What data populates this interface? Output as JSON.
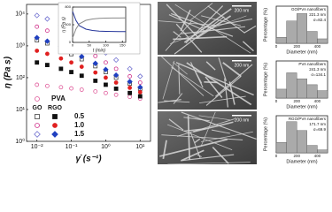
{
  "chart_data": [
    {
      "type": "scatter",
      "xlabel": "γ̇ (s⁻¹)",
      "ylabel": "η (Pa s)",
      "log_x": true,
      "log_y": true,
      "xlim": [
        0.005,
        20
      ],
      "ylim": [
        1,
        20000
      ],
      "xticks": [
        {
          "value": 0.01,
          "label": "10⁻²"
        },
        {
          "value": 0.1,
          "label": "10⁻¹"
        },
        {
          "value": 1,
          "label": "10⁰"
        },
        {
          "value": 10,
          "label": "10¹"
        }
      ],
      "yticks": [
        {
          "value": 1,
          "label": "10⁰"
        },
        {
          "value": 10,
          "label": "10¹"
        },
        {
          "value": 100,
          "label": "10²"
        },
        {
          "value": 1000,
          "label": "10³"
        },
        {
          "value": 10000,
          "label": "10⁴"
        }
      ],
      "x": [
        0.01,
        0.02,
        0.05,
        0.1,
        0.2,
        0.5,
        1,
        2,
        5,
        10
      ],
      "series": [
        {
          "name": "PVA",
          "color": "#e05a9a",
          "marker": "circle",
          "filled": false,
          "values": [
            60,
            55,
            50,
            46,
            42,
            37,
            33,
            29,
            25,
            22
          ]
        }
      ],
      "groups": [
        {
          "name": "GO",
          "filled": false,
          "series": [
            {
              "color": "#444444",
              "marker": "square",
              "values": [
                1500,
                1200,
                800,
                550,
                380,
                230,
                150,
                100,
                65,
                45
              ]
            },
            {
              "color": "#d0308a",
              "marker": "circle",
              "values": [
                4000,
                3000,
                1900,
                1300,
                850,
                480,
                300,
                190,
                110,
                70
              ]
            },
            {
              "color": "#7070d0",
              "marker": "diamond",
              "values": [
                9000,
                7000,
                4500,
                3000,
                1900,
                1000,
                600,
                360,
                190,
                110
              ]
            }
          ]
        },
        {
          "name": "RGO",
          "filled": true,
          "series": [
            {
              "color": "#111111",
              "marker": "square",
              "values": [
                300,
                250,
                190,
                150,
                115,
                80,
                60,
                45,
                33,
                26
              ]
            },
            {
              "color": "#e02020",
              "marker": "circle",
              "values": [
                700,
                560,
                400,
                300,
                220,
                145,
                100,
                70,
                48,
                35
              ]
            },
            {
              "color": "#2040c0",
              "marker": "diamond",
              "values": [
                1800,
                1400,
                950,
                680,
                460,
                280,
                180,
                120,
                75,
                50
              ]
            }
          ]
        }
      ],
      "levels": [
        "0.5",
        "1.0",
        "1.5"
      ]
    },
    {
      "type": "line",
      "xlabel": "t (min)",
      "ylabel": "η (Pa s)",
      "xlim": [
        0,
        160
      ],
      "ylim": [
        0,
        800
      ],
      "xticks": [
        0,
        50,
        100,
        150
      ],
      "yticks": [
        0,
        400,
        800
      ],
      "x": [
        0,
        10,
        20,
        40,
        60,
        80,
        100,
        120,
        140,
        160
      ],
      "series": [
        {
          "color": "#223399",
          "values": [
            700,
            500,
            380,
            300,
            270,
            255,
            250,
            248,
            246,
            245
          ]
        },
        {
          "color": "#888888",
          "values": [
            100,
            300,
            420,
            500,
            530,
            545,
            550,
            552,
            553,
            554
          ]
        }
      ]
    },
    {
      "type": "histogram",
      "title": "GO/PVA nanofibers",
      "mean": "221.3 nm",
      "sd": "σ=82.4",
      "xlabel": "Diameter (nm)",
      "ylabel": "Percentage (%)",
      "bins": [
        0,
        100,
        200,
        300,
        400,
        500
      ],
      "values": [
        8,
        30,
        40,
        16,
        6
      ],
      "xlim": [
        0,
        500
      ],
      "ylim": [
        0,
        50
      ],
      "xticks": [
        0,
        200,
        400
      ],
      "color": "#aaaaaa"
    },
    {
      "type": "histogram",
      "title": "PVA nanofibers",
      "mean": "241.3 nm",
      "sd": "σ=134.1",
      "xlabel": "Diameter (nm)",
      "ylabel": "Percentage (%)",
      "bins": [
        0,
        100,
        200,
        300,
        400,
        500
      ],
      "values": [
        12,
        34,
        26,
        18,
        10
      ],
      "xlim": [
        0,
        500
      ],
      "ylim": [
        0,
        50
      ],
      "xticks": [
        0,
        200,
        400
      ],
      "color": "#aaaaaa"
    },
    {
      "type": "histogram",
      "title": "RGO/PVA nanofibers",
      "mean": "171.7 nm",
      "sd": "σ=69.9",
      "xlabel": "Diameter (nm)",
      "ylabel": "Percentage (%)",
      "bins": [
        0,
        100,
        200,
        300,
        400,
        500
      ],
      "values": [
        14,
        42,
        30,
        10,
        4
      ],
      "xlim": [
        0,
        500
      ],
      "ylim": [
        0,
        50
      ],
      "xticks": [
        0,
        200,
        400
      ],
      "color": "#aaaaaa"
    }
  ],
  "sem_images": [
    {
      "scale_bar": "200 nm"
    },
    {
      "scale_bar": "200 nm"
    },
    {
      "scale_bar": "200 nm"
    }
  ]
}
